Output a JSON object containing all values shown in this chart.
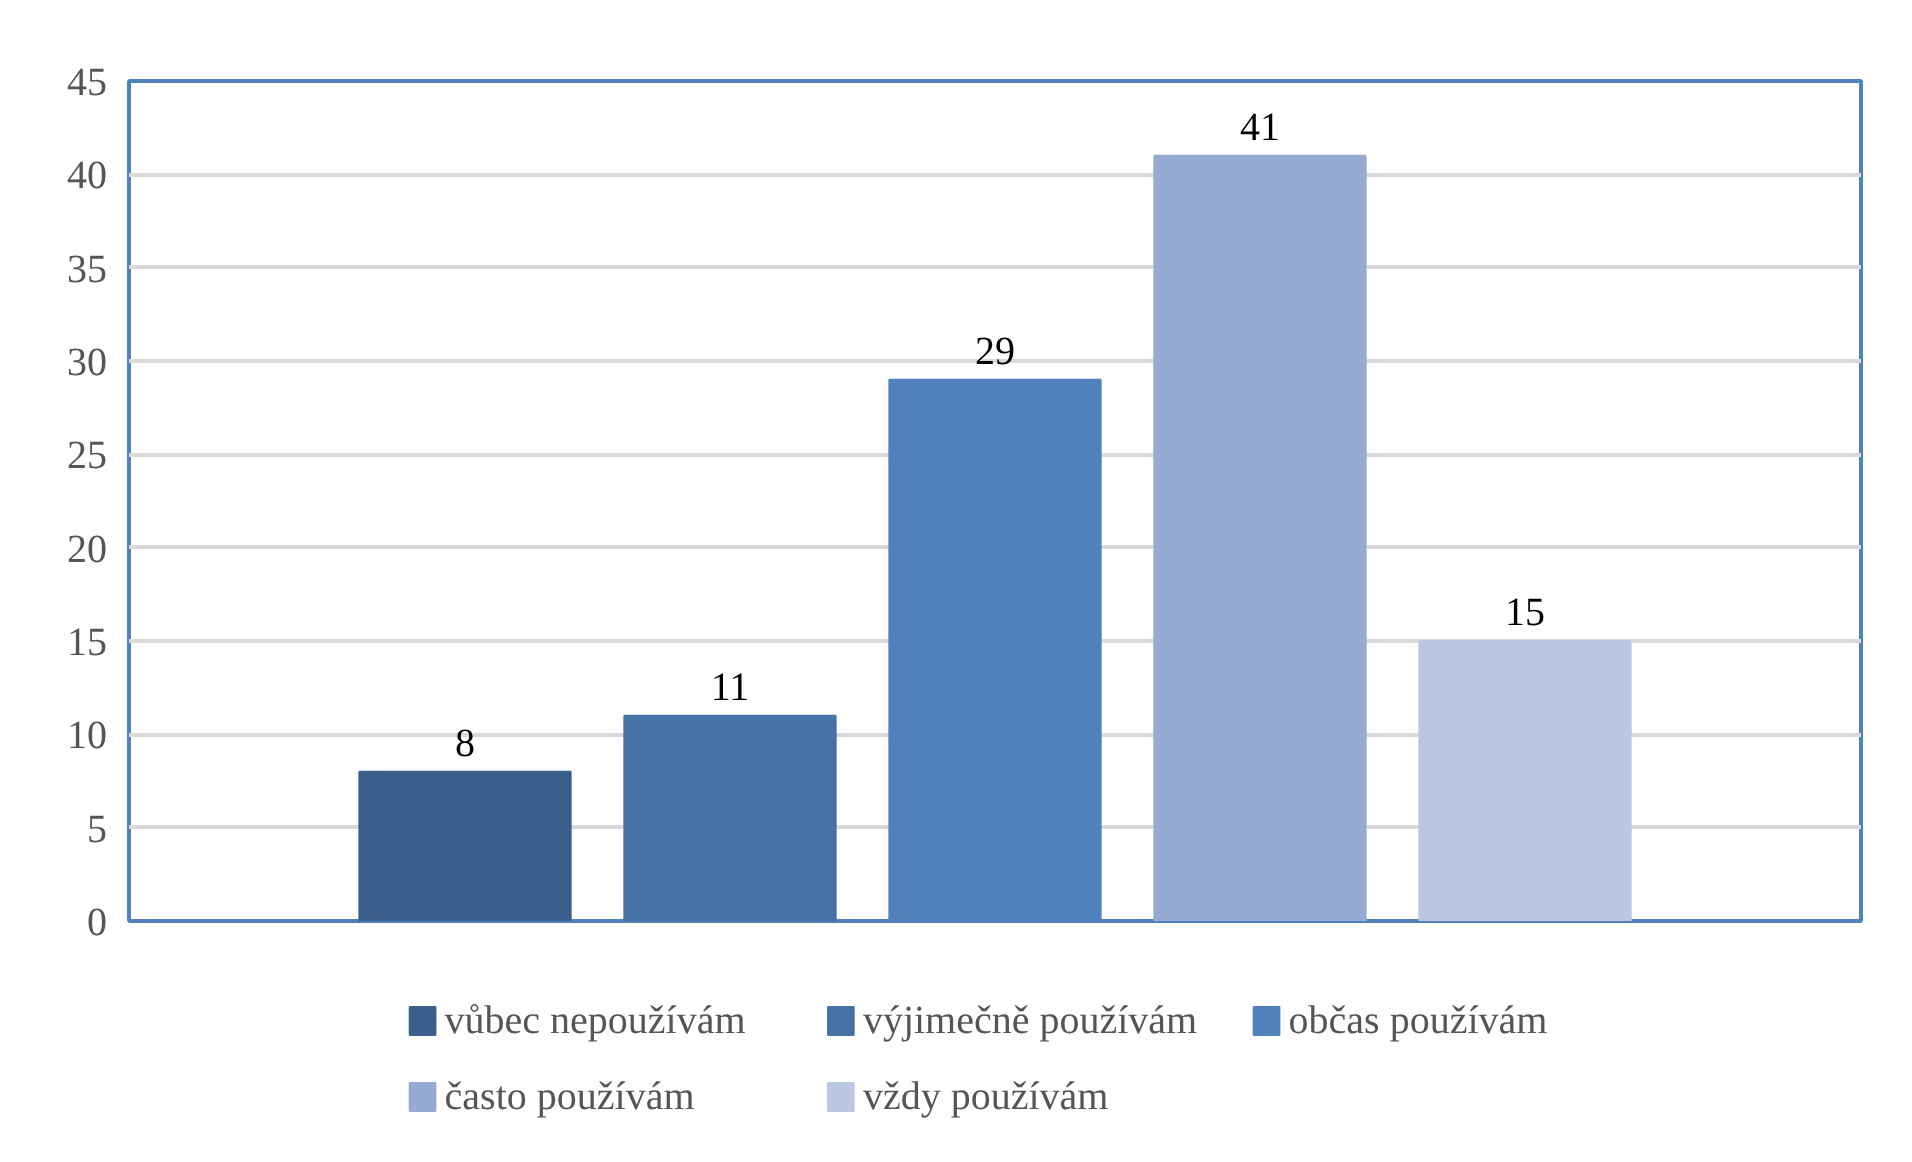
{
  "chart_data": {
    "type": "bar",
    "categories": [
      null
    ],
    "series": [
      {
        "name": "vůbec nepoužívám",
        "color": "#3b5e8c",
        "values": [
          8
        ]
      },
      {
        "name": "výjimečně používám",
        "color": "#4672a6",
        "values": [
          11
        ]
      },
      {
        "name": "občas používám",
        "color": "#4f81bd",
        "values": [
          29
        ]
      },
      {
        "name": "často používám",
        "color": "#95abd2",
        "values": [
          41
        ]
      },
      {
        "name": "vždy používám",
        "color": "#b9c7e0",
        "values": [
          15
        ]
      }
    ],
    "ylim": [
      0,
      45
    ],
    "yticks": [
      0,
      5,
      10,
      15,
      20,
      25,
      30,
      35,
      40,
      45
    ],
    "grid": "y",
    "legend": "bottom",
    "data_labels": true
  }
}
